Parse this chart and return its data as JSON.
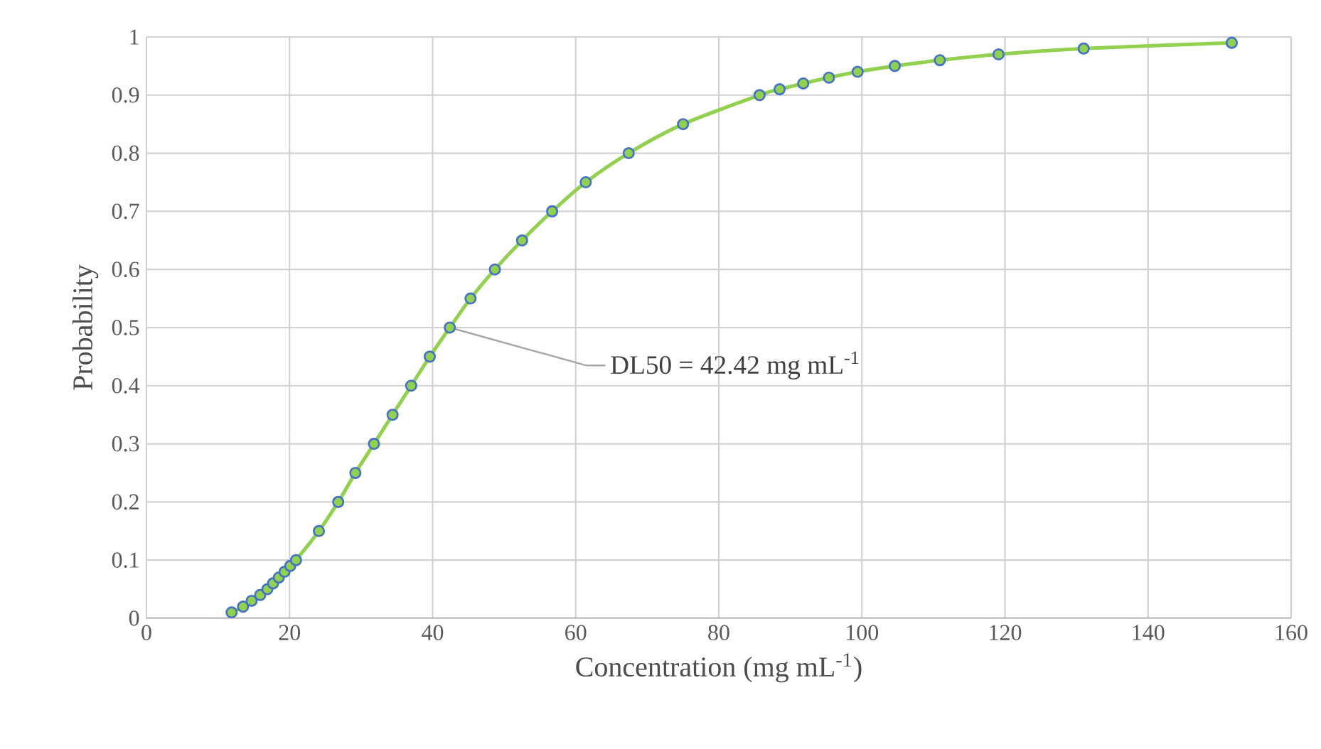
{
  "chart_data": {
    "type": "line",
    "xlabel": "Concentration (mg mL$^{-1}$)",
    "ylabel": "Probability",
    "series": [
      {
        "color": "#92d050",
        "x": [
          11.9,
          13.5,
          14.7,
          15.9,
          16.9,
          17.7,
          18.5,
          19.3,
          20.1,
          20.9,
          24.1,
          26.8,
          29.2,
          31.8,
          34.4,
          37.0,
          39.6,
          42.4,
          45.3,
          48.7,
          52.5,
          56.7,
          61.4,
          67.4,
          75.0,
          85.7,
          88.5,
          91.8,
          95.4,
          99.4,
          104.6,
          110.9,
          119.1,
          131.0,
          151.7
        ],
        "values": [
          0.01,
          0.02,
          0.03,
          0.04,
          0.05,
          0.06,
          0.07,
          0.08,
          0.09,
          0.1,
          0.15,
          0.2,
          0.25,
          0.3,
          0.35,
          0.4,
          0.45,
          0.5,
          0.55,
          0.6,
          0.65,
          0.7,
          0.75,
          0.8,
          0.85,
          0.9,
          0.91,
          0.92,
          0.93,
          0.94,
          0.95,
          0.96,
          0.97,
          0.98,
          0.99
        ]
      }
    ],
    "xlim": [
      0,
      160
    ],
    "ylim": [
      0,
      1
    ],
    "xticks": [
      0,
      20,
      40,
      60,
      80,
      100,
      120,
      140,
      160
    ],
    "yticks": [
      0,
      0.1,
      0.2,
      0.3,
      0.4,
      0.5,
      0.6,
      0.7,
      0.8,
      0.9,
      1
    ],
    "grid": true,
    "marker": "circle",
    "line_style": "solid",
    "annotations": [
      {
        "text": "DL50 = 42.42 mg mL$^{-1}$",
        "x": 42.42,
        "y": 0.5
      }
    ]
  }
}
